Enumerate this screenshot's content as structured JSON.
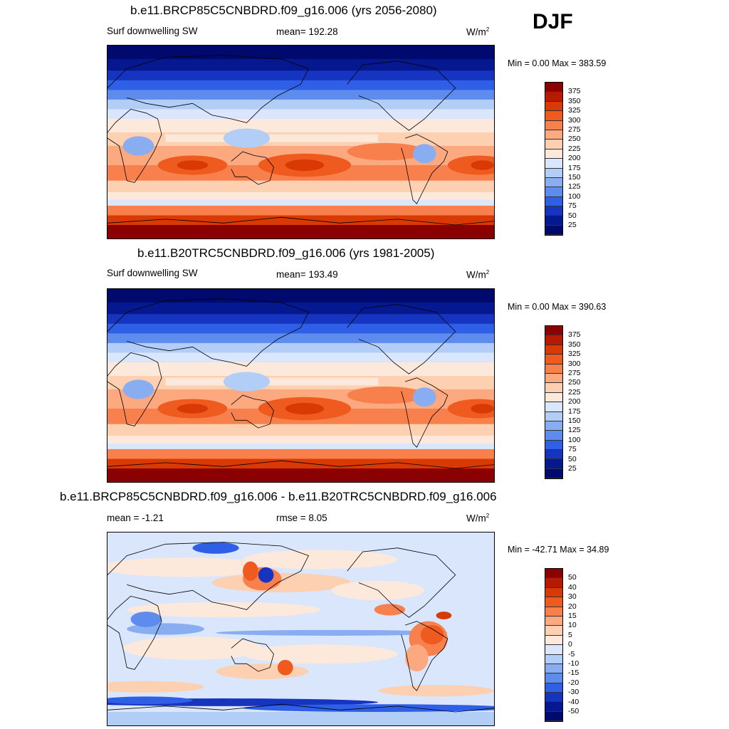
{
  "season": "DJF",
  "panels": [
    {
      "title": "b.e11.BRCP85C5CNBDRD.f09_g16.006 (yrs 2056-2080)",
      "left_label": "Surf downwelling SW",
      "center_label": "mean= 192.28",
      "units": "W/m",
      "units_sup": "2",
      "minmax": "Min =   0.00 Max = 383.59",
      "colorbar": {
        "labels": [
          "375",
          "350",
          "325",
          "300",
          "275",
          "250",
          "225",
          "200",
          "175",
          "150",
          "125",
          "100",
          "75",
          "50",
          "25"
        ],
        "colors": [
          "#8b0000",
          "#b51b00",
          "#d93a05",
          "#ef5a1e",
          "#f8804d",
          "#fca97f",
          "#fdd0b2",
          "#fde9dc",
          "#d9e6fb",
          "#b3cef6",
          "#88aef1",
          "#5d8cee",
          "#2f5fe6",
          "#1535c0",
          "#061890",
          "#000a6e"
        ]
      },
      "field": "present"
    },
    {
      "title": "b.e11.B20TRC5CNBDRD.f09_g16.006 (yrs 1981-2005)",
      "left_label": "Surf downwelling SW",
      "center_label": "mean= 193.49",
      "units": "W/m",
      "units_sup": "2",
      "minmax": "Min =   0.00 Max = 390.63",
      "colorbar": {
        "labels": [
          "375",
          "350",
          "325",
          "300",
          "275",
          "250",
          "225",
          "200",
          "175",
          "150",
          "125",
          "100",
          "75",
          "50",
          "25"
        ],
        "colors": [
          "#8b0000",
          "#b51b00",
          "#d93a05",
          "#ef5a1e",
          "#f8804d",
          "#fca97f",
          "#fdd0b2",
          "#fde9dc",
          "#d9e6fb",
          "#b3cef6",
          "#88aef1",
          "#5d8cee",
          "#2f5fe6",
          "#1535c0",
          "#061890",
          "#000a6e"
        ]
      },
      "field": "present"
    },
    {
      "title": "b.e11.BRCP85C5CNBDRD.f09_g16.006 - b.e11.B20TRC5CNBDRD.f09_g16.006",
      "left_label": "mean =  -1.21",
      "center_label": "rmse =   8.05",
      "units": "W/m",
      "units_sup": "2",
      "minmax": "Min = -42.71 Max =  34.89",
      "colorbar": {
        "labels": [
          "50",
          "40",
          "30",
          "20",
          "15",
          "10",
          "5",
          "0",
          "-5",
          "-10",
          "-15",
          "-20",
          "-30",
          "-40",
          "-50"
        ],
        "colors": [
          "#8b0000",
          "#b51b00",
          "#d93a05",
          "#ef5a1e",
          "#f8804d",
          "#fca97f",
          "#fdd0b2",
          "#fde9dc",
          "#d9e6fb",
          "#b3cef6",
          "#88aef1",
          "#5d8cee",
          "#2f5fe6",
          "#1535c0",
          "#061890",
          "#000a6e"
        ]
      },
      "field": "diff"
    }
  ]
}
